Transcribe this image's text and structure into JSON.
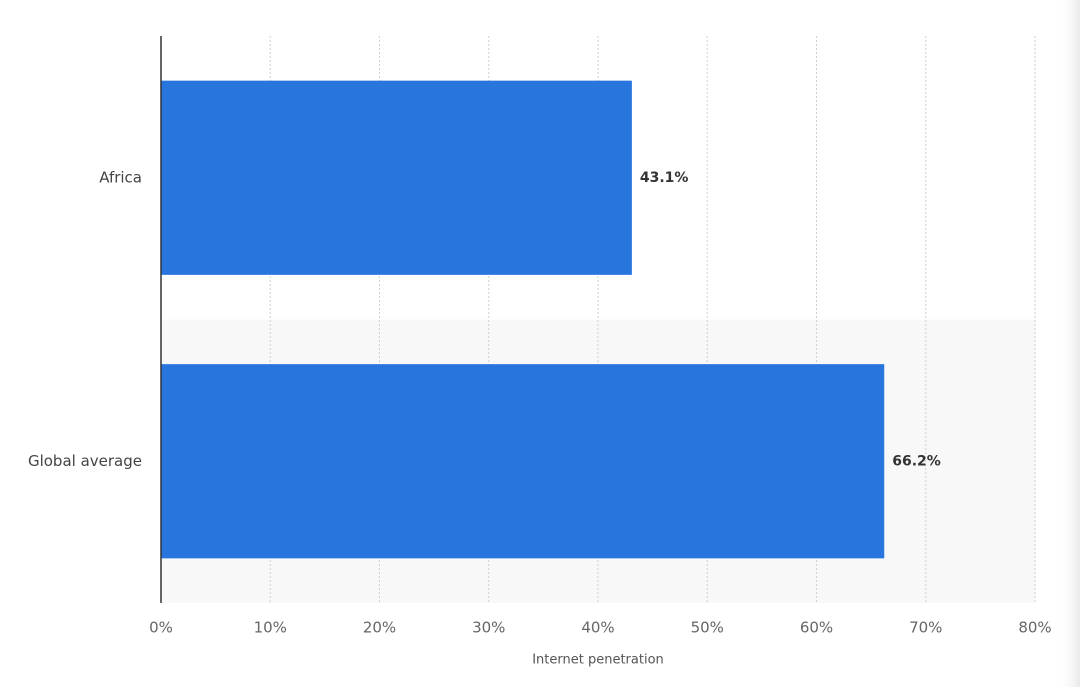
{
  "chart_data": {
    "type": "hbar",
    "x_label": "Internet penetration",
    "categories": [
      "Africa",
      "Global average"
    ],
    "values": [
      43.1,
      66.2
    ],
    "value_labels": [
      "43.1%",
      "66.2%"
    ],
    "color": "#2876dd",
    "xlim": [
      0,
      80
    ],
    "xticks": [
      {
        "value": 0,
        "label": "0%"
      },
      {
        "value": 10,
        "label": "10%"
      },
      {
        "value": 20,
        "label": "20%"
      },
      {
        "value": 30,
        "label": "30%"
      },
      {
        "value": 40,
        "label": "40%"
      },
      {
        "value": 50,
        "label": "50%"
      },
      {
        "value": 60,
        "label": "60%"
      },
      {
        "value": 70,
        "label": "70%"
      },
      {
        "value": 80,
        "label": "80%"
      }
    ],
    "grid": true
  }
}
